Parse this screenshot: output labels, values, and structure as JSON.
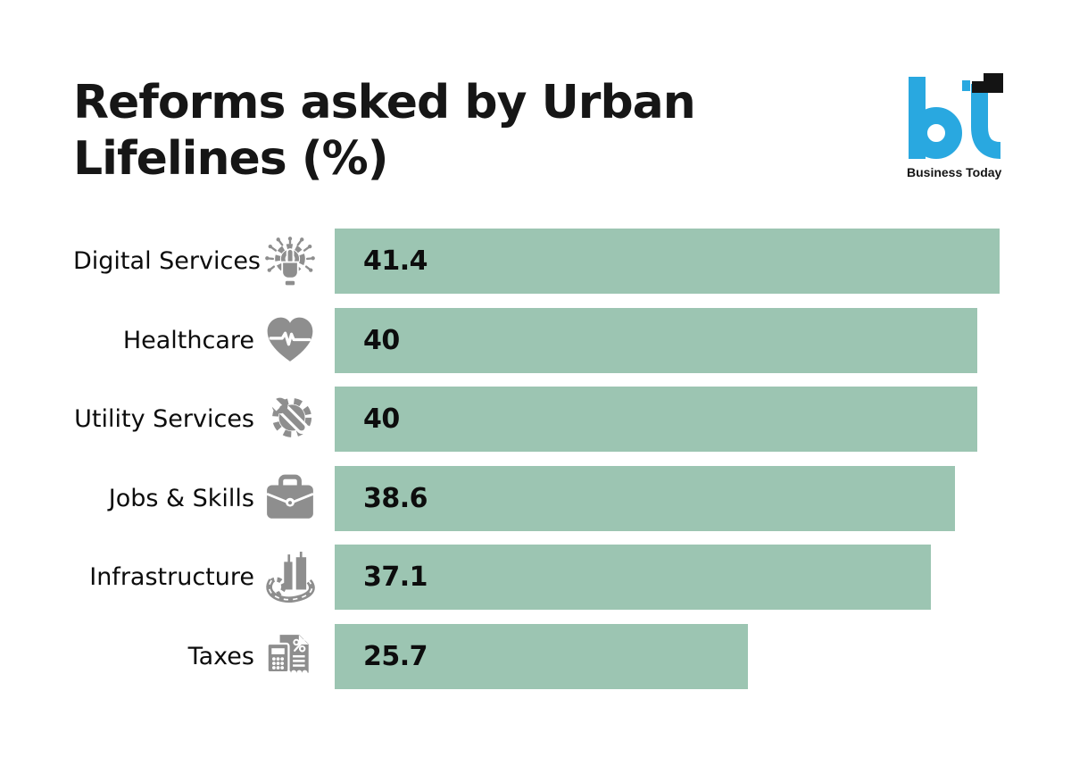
{
  "header": {
    "title_lines": [
      "Reforms asked by Urban",
      "Lifelines (%)"
    ],
    "logo": {
      "monogram": "bt",
      "wordmark": "Business Today",
      "blue": "#29a8e0",
      "black": "#141414"
    }
  },
  "chart_data": {
    "type": "bar",
    "orientation": "horizontal",
    "title": "Reforms asked by Urban Lifelines (%)",
    "unit": "%",
    "categories": [
      "Digital Services",
      "Healthcare",
      "Utility Services",
      "Jobs & Skills",
      "Infrastructure",
      "Taxes"
    ],
    "values": [
      41.4,
      40,
      40,
      38.6,
      37.1,
      25.7
    ],
    "icons": [
      "digital-services-icon",
      "healthcare-icon",
      "utility-services-icon",
      "jobs-skills-icon",
      "infrastructure-icon",
      "taxes-icon"
    ],
    "bar_color": "#9cc5b2",
    "icon_color": "#8e8e8e",
    "value_label_color": "#0d0d0d",
    "axis": "hidden",
    "grid": "off",
    "legend": "none",
    "value_labels": "inside-start",
    "xlim": [
      0,
      41.4
    ]
  }
}
